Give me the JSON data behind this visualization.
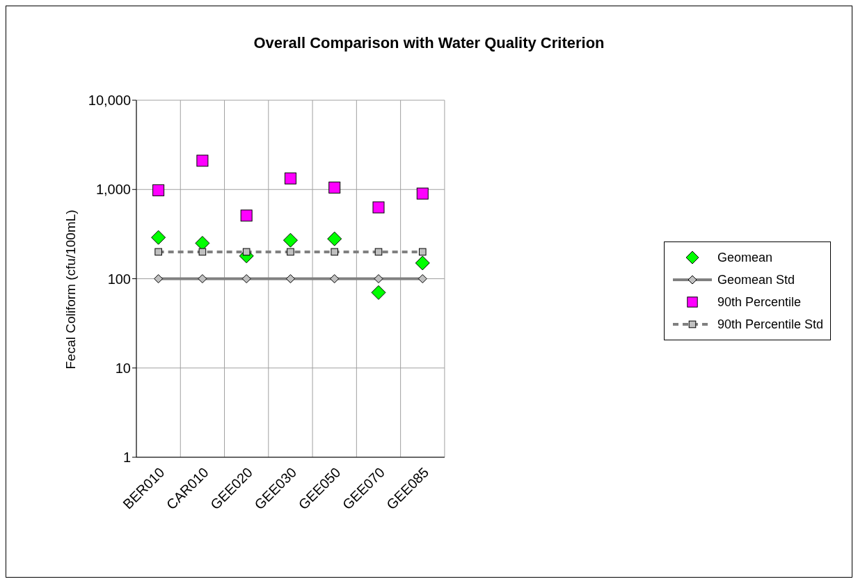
{
  "chart_data": {
    "type": "scatter",
    "title": "Overall Comparison with Water Quality Criterion",
    "ylabel": "Fecal Coliform (cfu/100mL)",
    "categories": [
      "BER010",
      "CAR010",
      "GEE020",
      "GEE030",
      "GEE050",
      "GEE070",
      "GEE085"
    ],
    "series": [
      {
        "name": "Geomean",
        "marker": "diamond",
        "color": "#00ff00",
        "values": [
          290,
          250,
          180,
          270,
          280,
          70,
          150
        ]
      },
      {
        "name": "Geomean Std",
        "type": "line",
        "marker": "diamond",
        "line_style": "solid",
        "color": "#808080",
        "values": [
          100,
          100,
          100,
          100,
          100,
          100,
          100
        ]
      },
      {
        "name": "90th Percentile",
        "marker": "square",
        "color": "#ff00ff",
        "values": [
          980,
          2100,
          510,
          1330,
          1050,
          630,
          900
        ]
      },
      {
        "name": "90th Percentile Std",
        "type": "line",
        "marker": "square",
        "line_style": "dashed",
        "color": "#808080",
        "values": [
          200,
          200,
          200,
          200,
          200,
          200,
          200
        ]
      }
    ],
    "log": "y",
    "ylim": [
      1,
      10000
    ],
    "yticks": [
      1,
      10,
      100,
      {
        "value": 1000,
        "label": "1,000"
      },
      {
        "value": 10000,
        "label": "10,000"
      }
    ],
    "grid": true,
    "legend": "right"
  }
}
